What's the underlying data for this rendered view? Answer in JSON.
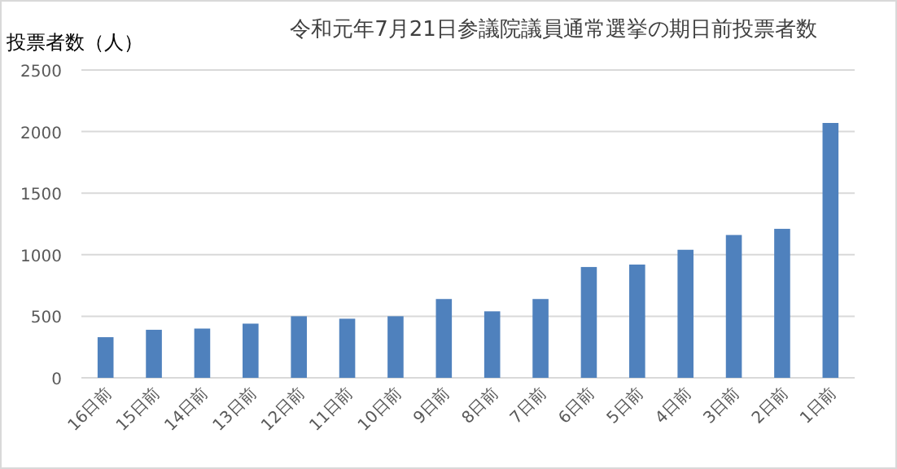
{
  "chart_data": {
    "type": "bar",
    "title": "令和元年7月21日参議院議員通常選挙の期日前投票者数",
    "ylabel": "投票者数（人）",
    "categories": [
      "16日前",
      "15日前",
      "14日前",
      "13日前",
      "12日前",
      "11日前",
      "10日前",
      "9日前",
      "8日前",
      "7日前",
      "6日前",
      "5日前",
      "4日前",
      "3日前",
      "2日前",
      "1日前"
    ],
    "values": [
      330,
      390,
      400,
      440,
      500,
      480,
      500,
      640,
      540,
      640,
      900,
      920,
      1040,
      1160,
      1210,
      2070
    ],
    "color": "#4f81bd",
    "ylim": [
      0,
      2500
    ],
    "yticks": [
      0,
      500,
      1000,
      1500,
      2000,
      2500
    ],
    "grid": "y"
  }
}
